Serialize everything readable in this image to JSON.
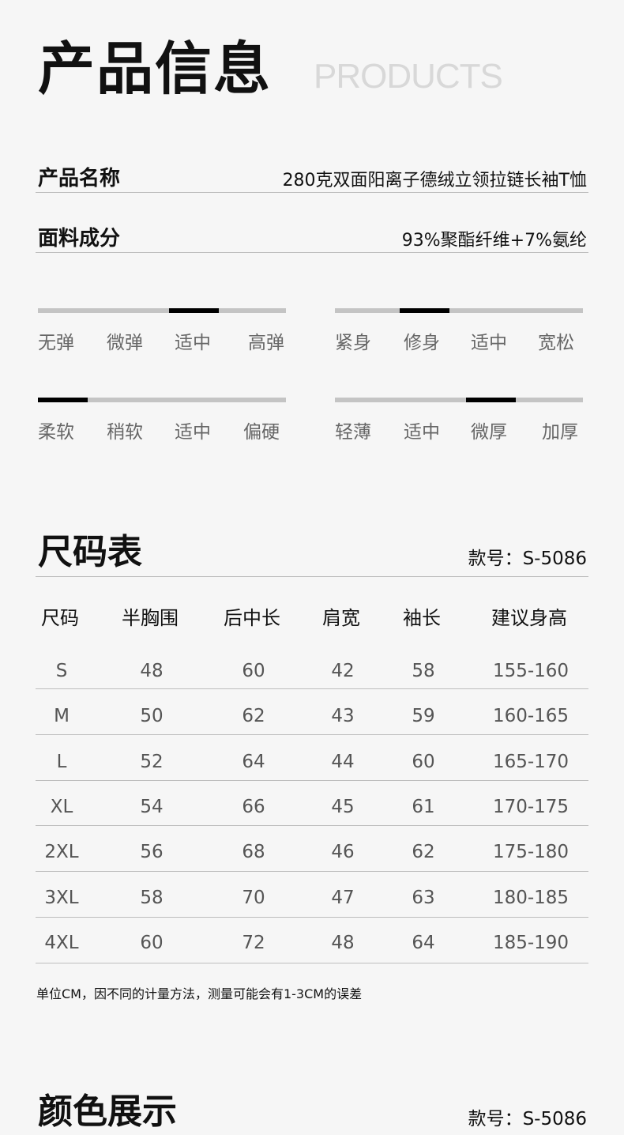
{
  "header": {
    "title": "产品信息",
    "subtitle": "PRODUCTS"
  },
  "info": [
    {
      "label": "产品名称",
      "value": "280克双面阳离子德绒立领拉链长袖T恤"
    },
    {
      "label": "面料成分",
      "value": "93%聚酯纤维+7%氨纶"
    }
  ],
  "scales": [
    {
      "options": [
        "无弹",
        "微弹",
        "适中",
        "高弹"
      ],
      "selected": "适中",
      "level": 0.53
    },
    {
      "options": [
        "紧身",
        "修身",
        "适中",
        "宽松"
      ],
      "selected": "修身",
      "level": 0.26
    },
    {
      "options": [
        "柔软",
        "稍软",
        "适中",
        "偏硬"
      ],
      "selected": "柔软",
      "level": 0.0
    },
    {
      "options": [
        "轻薄",
        "适中",
        "微厚",
        "加厚"
      ],
      "selected": "微厚",
      "level": 0.53
    }
  ],
  "size_chart": {
    "title": "尺码表",
    "model": "款号：S-5086",
    "columns": [
      "尺码",
      "半胸围",
      "后中长",
      "肩宽",
      "袖长",
      "建议身高"
    ],
    "rows": [
      [
        "S",
        "48",
        "60",
        "42",
        "58",
        "155-160"
      ],
      [
        "M",
        "50",
        "62",
        "43",
        "59",
        "160-165"
      ],
      [
        "L",
        "52",
        "64",
        "44",
        "60",
        "165-170"
      ],
      [
        "XL",
        "54",
        "66",
        "45",
        "61",
        "170-175"
      ],
      [
        "2XL",
        "56",
        "68",
        "46",
        "62",
        "175-180"
      ],
      [
        "3XL",
        "58",
        "70",
        "47",
        "63",
        "180-185"
      ],
      [
        "4XL",
        "60",
        "72",
        "48",
        "64",
        "185-190"
      ]
    ],
    "note": "单位CM，因不同的计量方法，测量可能会有1-3CM的误差"
  },
  "colors_section": {
    "title": "颜色展示",
    "model": "款号：S-5086"
  }
}
